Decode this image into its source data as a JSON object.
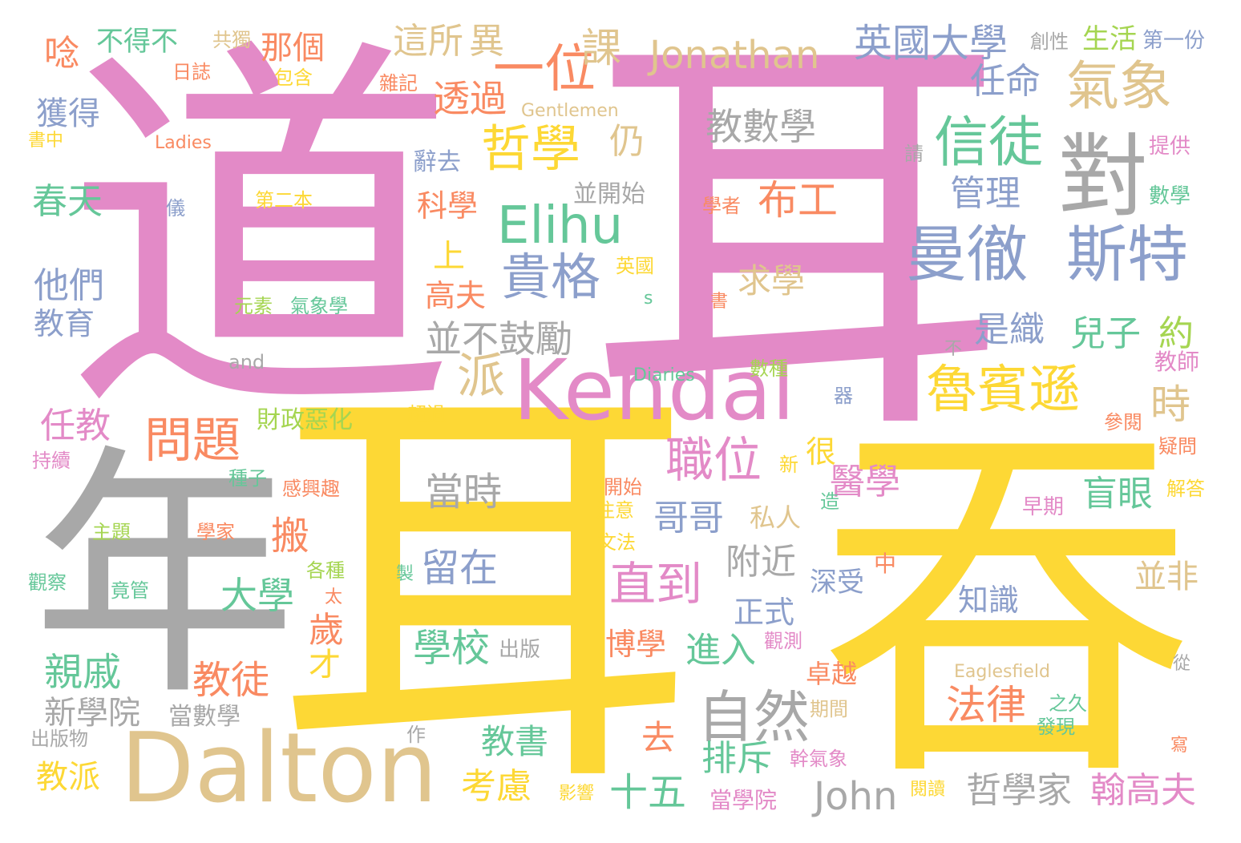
{
  "palette": {
    "pink": "#e38ac7",
    "yellow": "#fdd835",
    "gray": "#a8a8a8",
    "tan": "#e0c58e",
    "blue": "#8c9fcb",
    "green": "#65c799",
    "orange": "#f98a62",
    "lime": "#a5d551",
    "background": "#ffffff"
  },
  "words": [
    {
      "text": "耳",
      "color": "pink"
    },
    {
      "text": "道",
      "color": "pink"
    },
    {
      "text": "耳",
      "color": "yellow"
    },
    {
      "text": "吞",
      "color": "yellow"
    },
    {
      "text": "年",
      "color": "gray"
    },
    {
      "text": "Dalton",
      "color": "tan"
    },
    {
      "text": "Kendal",
      "color": "pink"
    },
    {
      "text": "對",
      "color": "gray"
    },
    {
      "text": "曼徹",
      "color": "blue"
    },
    {
      "text": "斯特",
      "color": "blue"
    },
    {
      "text": "信徒",
      "color": "green"
    },
    {
      "text": "氣象",
      "color": "tan"
    },
    {
      "text": "魯賓遜",
      "color": "yellow"
    },
    {
      "text": "一位",
      "color": "orange"
    },
    {
      "text": "Elihu",
      "color": "green"
    },
    {
      "text": "貴格",
      "color": "blue"
    },
    {
      "text": "哲學",
      "color": "yellow"
    },
    {
      "text": "Jonathan",
      "color": "tan"
    },
    {
      "text": "英國大學",
      "color": "blue"
    },
    {
      "text": "自然",
      "color": "gray"
    },
    {
      "text": "職位",
      "color": "pink"
    },
    {
      "text": "直到",
      "color": "pink"
    },
    {
      "text": "問題",
      "color": "orange"
    },
    {
      "text": "派",
      "color": "tan"
    },
    {
      "text": "時",
      "color": "tan"
    },
    {
      "text": "布工",
      "color": "orange"
    },
    {
      "text": "教數學",
      "color": "gray"
    },
    {
      "text": "並不鼓勵",
      "color": "gray"
    },
    {
      "text": "法律",
      "color": "orange"
    },
    {
      "text": "John",
      "color": "gray"
    },
    {
      "text": "哲學家",
      "color": "gray"
    },
    {
      "text": "翰高夫",
      "color": "pink"
    },
    {
      "text": "課",
      "color": "tan"
    },
    {
      "text": "這所",
      "color": "tan"
    },
    {
      "text": "異",
      "color": "tan"
    },
    {
      "text": "透過",
      "color": "orange"
    },
    {
      "text": "任命",
      "color": "blue"
    },
    {
      "text": "管理",
      "color": "blue"
    },
    {
      "text": "仍",
      "color": "tan"
    },
    {
      "text": "春天",
      "color": "green"
    },
    {
      "text": "他們",
      "color": "blue"
    },
    {
      "text": "教育",
      "color": "blue"
    },
    {
      "text": "獲得",
      "color": "blue"
    },
    {
      "text": "那個",
      "color": "orange"
    },
    {
      "text": "唸",
      "color": "orange"
    },
    {
      "text": "不得不",
      "color": "green"
    },
    {
      "text": "任教",
      "color": "pink"
    },
    {
      "text": "親戚",
      "color": "green"
    },
    {
      "text": "新學院",
      "color": "gray"
    },
    {
      "text": "當數學",
      "color": "gray"
    },
    {
      "text": "出版物",
      "color": "gray"
    },
    {
      "text": "教派",
      "color": "yellow"
    },
    {
      "text": "教徒",
      "color": "orange"
    },
    {
      "text": "大學",
      "color": "green"
    },
    {
      "text": "搬",
      "color": "orange"
    },
    {
      "text": "歲",
      "color": "orange"
    },
    {
      "text": "才",
      "color": "yellow"
    },
    {
      "text": "當時",
      "color": "gray"
    },
    {
      "text": "留在",
      "color": "blue"
    },
    {
      "text": "學校",
      "color": "green"
    },
    {
      "text": "出版",
      "color": "gray"
    },
    {
      "text": "教書",
      "color": "green"
    },
    {
      "text": "考慮",
      "color": "yellow"
    },
    {
      "text": "十五",
      "color": "green"
    },
    {
      "text": "去",
      "color": "orange"
    },
    {
      "text": "排斥",
      "color": "green"
    },
    {
      "text": "當學院",
      "color": "pink"
    },
    {
      "text": "博學",
      "color": "orange"
    },
    {
      "text": "進入",
      "color": "green"
    },
    {
      "text": "附近",
      "color": "gray"
    },
    {
      "text": "正式",
      "color": "blue"
    },
    {
      "text": "哥哥",
      "color": "blue"
    },
    {
      "text": "醫學",
      "color": "pink"
    },
    {
      "text": "盲眼",
      "color": "green"
    },
    {
      "text": "兒子",
      "color": "green"
    },
    {
      "text": "是織",
      "color": "blue"
    },
    {
      "text": "約",
      "color": "lime"
    },
    {
      "text": "求學",
      "color": "tan"
    },
    {
      "text": "上",
      "color": "yellow"
    },
    {
      "text": "高夫",
      "color": "orange"
    },
    {
      "text": "科學",
      "color": "orange"
    },
    {
      "text": "辭去",
      "color": "blue"
    },
    {
      "text": "並開始",
      "color": "gray"
    },
    {
      "text": "知識",
      "color": "blue"
    },
    {
      "text": "並非",
      "color": "tan"
    },
    {
      "text": "卓越",
      "color": "orange"
    },
    {
      "text": "很",
      "color": "yellow"
    },
    {
      "text": "私人",
      "color": "tan"
    },
    {
      "text": "深受",
      "color": "blue"
    },
    {
      "text": "財政惡化",
      "color": "lime"
    },
    {
      "text": "Diaries",
      "color": "green"
    },
    {
      "text": "and",
      "color": "gray"
    },
    {
      "text": "Gentlemen",
      "color": "tan"
    },
    {
      "text": "Ladies",
      "color": "orange"
    },
    {
      "text": "Eaglesfield",
      "color": "tan"
    },
    {
      "text": "s",
      "color": "green"
    },
    {
      "text": "第二本",
      "color": "yellow"
    },
    {
      "text": "元素",
      "color": "lime"
    },
    {
      "text": "氣象學",
      "color": "green"
    },
    {
      "text": "共獨",
      "color": "tan"
    },
    {
      "text": "包含",
      "color": "yellow"
    },
    {
      "text": "日誌",
      "color": "orange"
    },
    {
      "text": "雜記",
      "color": "orange"
    },
    {
      "text": "書中",
      "color": "yellow"
    },
    {
      "text": "儀",
      "color": "blue"
    },
    {
      "text": "創性",
      "color": "gray"
    },
    {
      "text": "生活",
      "color": "lime"
    },
    {
      "text": "第一份",
      "color": "blue"
    },
    {
      "text": "請",
      "color": "gray"
    },
    {
      "text": "提供",
      "color": "pink"
    },
    {
      "text": "數學",
      "color": "green"
    },
    {
      "text": "學者",
      "color": "orange"
    },
    {
      "text": "英國",
      "color": "yellow"
    },
    {
      "text": "書",
      "color": "orange"
    },
    {
      "text": "不",
      "color": "gray"
    },
    {
      "text": "教師",
      "color": "pink"
    },
    {
      "text": "數種",
      "color": "lime"
    },
    {
      "text": "器",
      "color": "blue"
    },
    {
      "text": "參閱",
      "color": "orange"
    },
    {
      "text": "疑問",
      "color": "orange"
    },
    {
      "text": "超過",
      "color": "yellow"
    },
    {
      "text": "持續",
      "color": "pink"
    },
    {
      "text": "種子",
      "color": "green"
    },
    {
      "text": "感興趣",
      "color": "orange"
    },
    {
      "text": "新",
      "color": "yellow"
    },
    {
      "text": "開始",
      "color": "orange"
    },
    {
      "text": "注意",
      "color": "yellow"
    },
    {
      "text": "文法",
      "color": "yellow"
    },
    {
      "text": "造",
      "color": "green"
    },
    {
      "text": "早期",
      "color": "pink"
    },
    {
      "text": "解答",
      "color": "yellow"
    },
    {
      "text": "主題",
      "color": "lime"
    },
    {
      "text": "學家",
      "color": "orange"
    },
    {
      "text": "觀察",
      "color": "green"
    },
    {
      "text": "竟管",
      "color": "green"
    },
    {
      "text": "各種",
      "color": "lime"
    },
    {
      "text": "太",
      "color": "orange"
    },
    {
      "text": "製",
      "color": "green"
    },
    {
      "text": "中",
      "color": "orange"
    },
    {
      "text": "觀測",
      "color": "pink"
    },
    {
      "text": "從",
      "color": "gray"
    },
    {
      "text": "期間",
      "color": "tan"
    },
    {
      "text": "之久",
      "color": "green"
    },
    {
      "text": "發現",
      "color": "green"
    },
    {
      "text": "作",
      "color": "gray"
    },
    {
      "text": "幹氣象",
      "color": "pink"
    },
    {
      "text": "閱讀",
      "color": "yellow"
    },
    {
      "text": "影響",
      "color": "yellow"
    },
    {
      "text": "寫",
      "color": "orange"
    }
  ]
}
